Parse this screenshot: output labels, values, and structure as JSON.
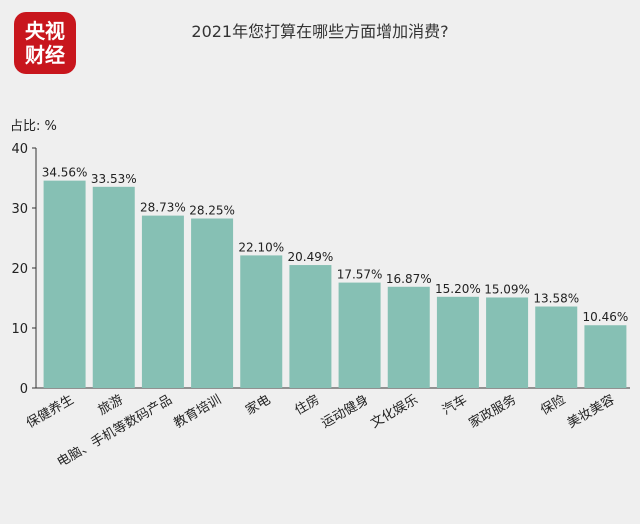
{
  "logo": {
    "line1": "央视",
    "line2": "财经"
  },
  "chart_data": {
    "type": "bar",
    "title": "2021年您打算在哪些方面增加消费?",
    "ylabel": "占比: %",
    "xlabel": "",
    "ylim": [
      0,
      40
    ],
    "yticks": [
      0,
      10,
      20,
      30,
      40
    ],
    "categories": [
      "保健养生",
      "旅游",
      "电脑、手机等数码产品",
      "教育培训",
      "家电",
      "住房",
      "运动健身",
      "文化娱乐",
      "汽车",
      "家政服务",
      "保险",
      "美妆美容"
    ],
    "values": [
      34.56,
      33.53,
      28.73,
      28.25,
      22.1,
      20.49,
      17.57,
      16.87,
      15.2,
      15.09,
      13.58,
      10.46
    ],
    "data_labels": [
      "34.56%",
      "33.53%",
      "28.73%",
      "28.25%",
      "22.10%",
      "20.49%",
      "17.57%",
      "16.87%",
      "15.20%",
      "15.09%",
      "13.58%",
      "10.46%"
    ],
    "bar_color": "#86c0b4",
    "grid": false
  }
}
